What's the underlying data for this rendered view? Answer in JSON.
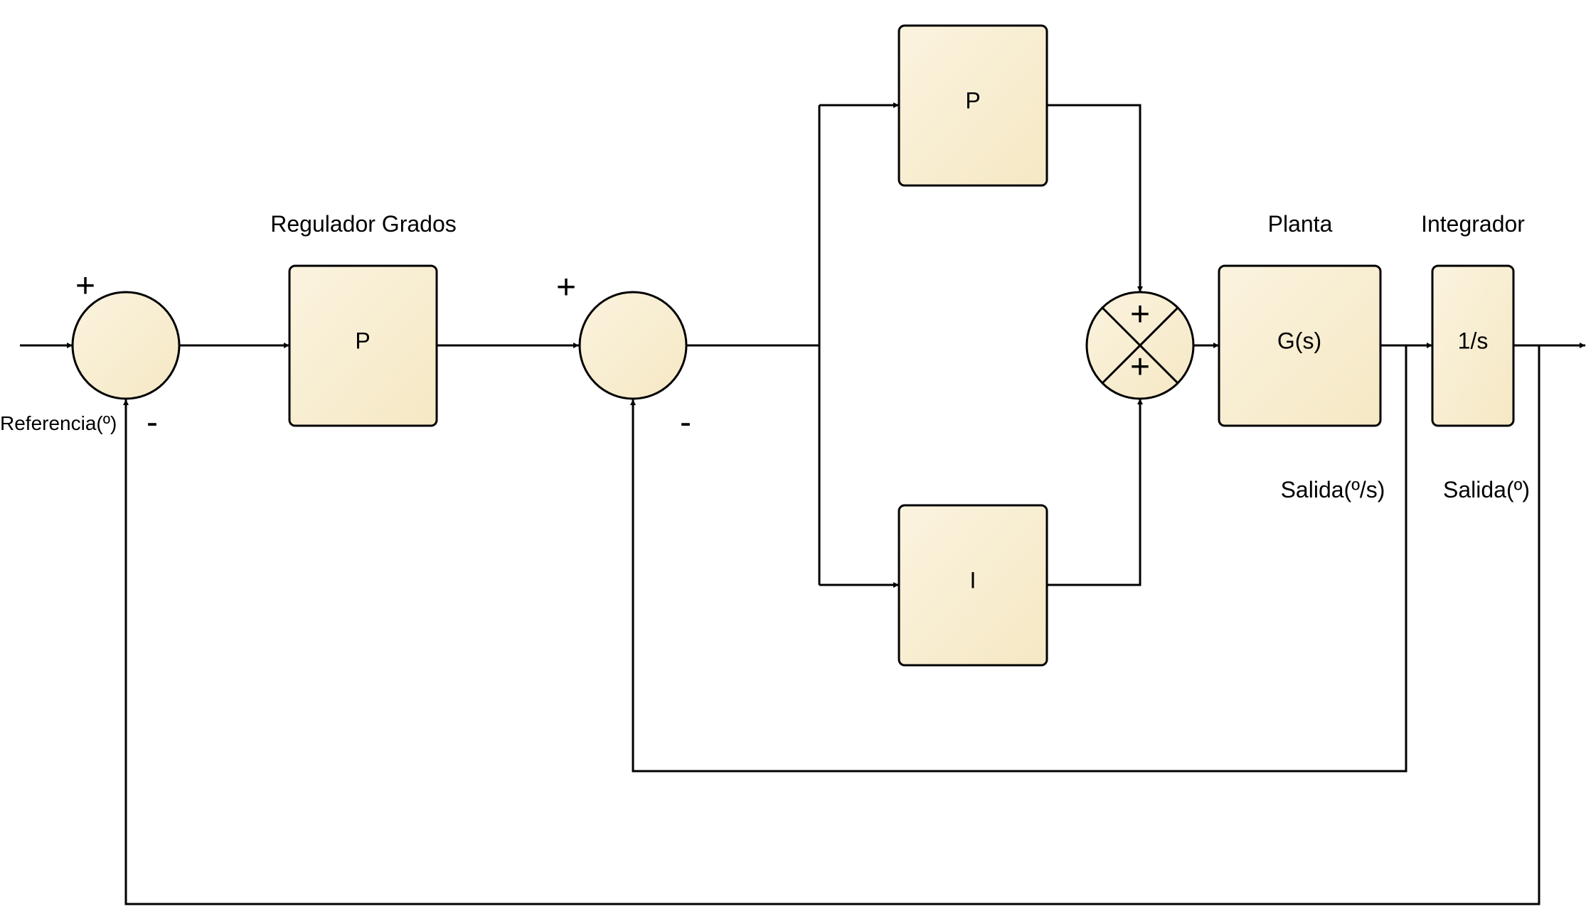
{
  "colors": {
    "block_fill_top": "#fbf3df",
    "block_fill_bottom": "#f5e8c4",
    "line": "#000000",
    "background": "#ffffff"
  },
  "labels": {
    "reference": "Referencia(º)",
    "outer_regulator_title": "Regulador Grados",
    "plant_title": "Planta",
    "integrator_title": "Integrador",
    "output_rate": "Salida(º/s)",
    "output_angle": "Salida(º)"
  },
  "blocks": {
    "outer_p": "P",
    "inner_p": "P",
    "inner_i": "I",
    "plant": "G(s)",
    "integrator": "1/s"
  },
  "signs": {
    "sum1_plus": "+",
    "sum1_minus": "-",
    "sum2_plus": "+",
    "sum2_minus": "-",
    "sum3_top": "+",
    "sum3_bottom": "+"
  }
}
